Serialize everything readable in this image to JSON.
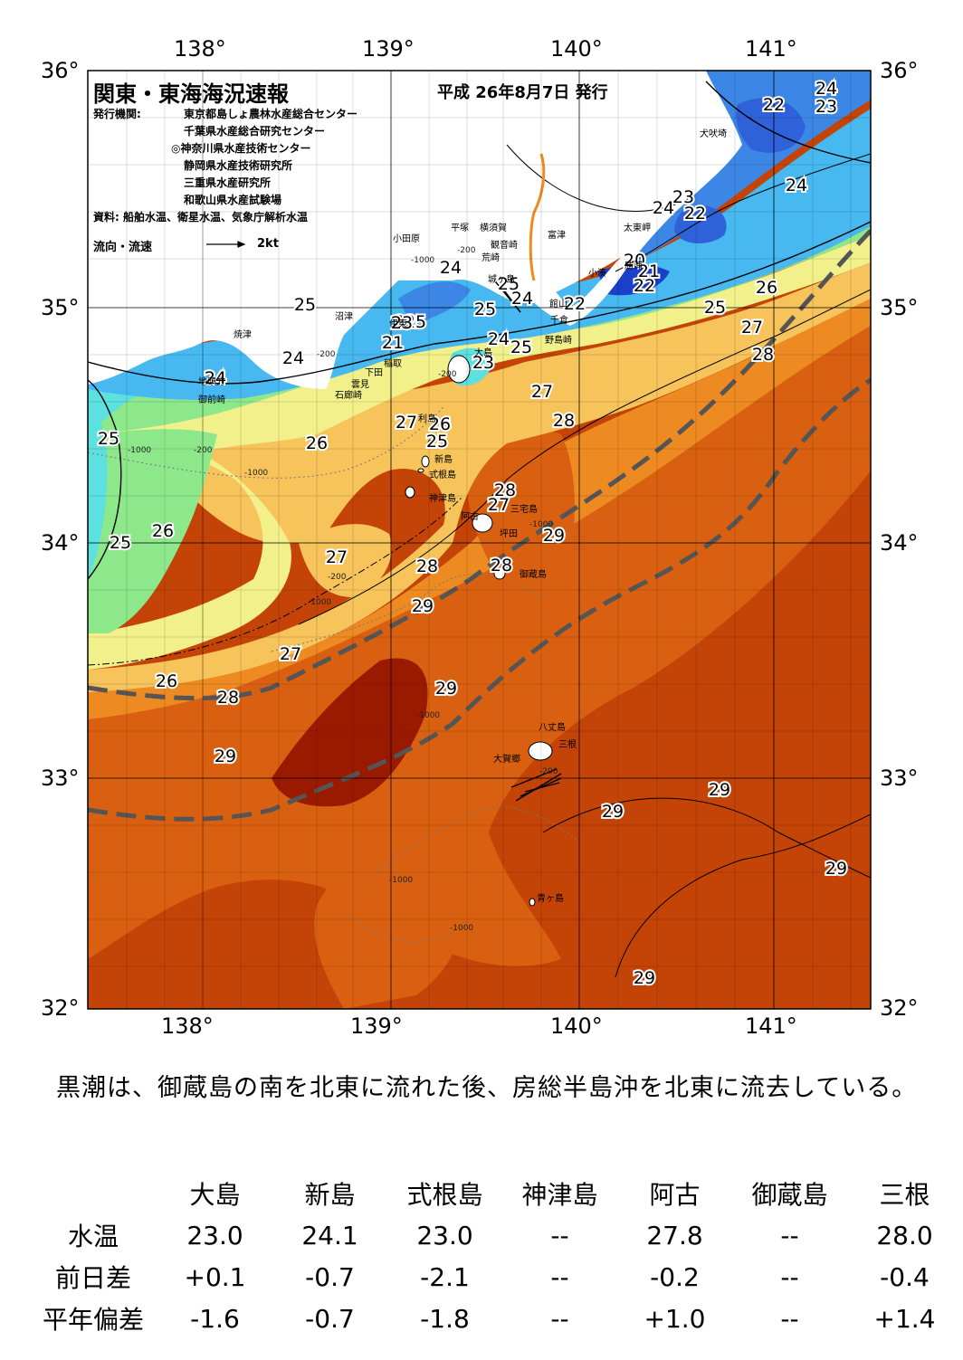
{
  "header": {
    "title": "関東・東海海況速報",
    "date": "平成 26年8月7日 発行",
    "agency_label": "発行機関:",
    "agencies": [
      "東京都島しょ農林水産総合センター",
      "千葉県水産総合研究センター",
      "◎神奈川県水産技術センター",
      "静岡県水産技術研究所",
      "三重県水産研究所",
      "和歌山県水産試験場"
    ],
    "source": "資料: 船舶水温、衛星水温、気象庁解析水温",
    "flow_legend": "流向・流速",
    "flow_unit": "2kt"
  },
  "axes": {
    "lon_labels": [
      "138°",
      "139°",
      "140°",
      "141°"
    ],
    "lat_labels": [
      "36°",
      "35°",
      "34°",
      "33°",
      "32°"
    ]
  },
  "isotherm_labels": [
    "22",
    "24",
    "23",
    "24",
    "23",
    "24",
    "22",
    "20",
    "21",
    "22",
    "25",
    "26",
    "24",
    "25",
    "24",
    "25",
    "25",
    "22",
    "22",
    "27",
    "28",
    "25",
    "24",
    "23",
    "21",
    "23",
    "24",
    "24",
    "23",
    "25",
    "27",
    "28",
    "25",
    "26",
    "27",
    "26",
    "25",
    "28",
    "27",
    "29",
    "26",
    "25",
    "28",
    "27",
    "28",
    "29",
    "27",
    "29",
    "26",
    "28",
    "29",
    "29",
    "29",
    "29",
    "29",
    "24"
  ],
  "place_names": [
    "犬吠埼",
    "平塚",
    "横須賀",
    "観音崎",
    "富津",
    "小田原",
    "荒崎",
    "太東岬",
    "沼津",
    "城ヶ島",
    "小湊",
    "館山",
    "焼津",
    "伊東",
    "千倉",
    "野島崎",
    "稲取",
    "大島",
    "下田",
    "地頭方",
    "雲見",
    "御前崎",
    "石廊崎",
    "利島",
    "新島",
    "式根島",
    "神津島",
    "三宅島",
    "阿古",
    "坪田",
    "御蔵島",
    "八丈島",
    "三根",
    "大賀郷",
    "青ヶ島",
    "勝浦"
  ],
  "depth_labels": [
    "-200",
    "-1000",
    "-200",
    "-1000",
    "-200",
    "-1000",
    "-200",
    "-1000",
    "-200",
    "-1000",
    "-1000",
    "-1000",
    "-200",
    "-1000"
  ],
  "summary": "黒潮は、御蔵島の南を北東に流れた後、房総半島沖を北東に流去している。",
  "table": {
    "columns": [
      "大島",
      "新島",
      "式根島",
      "神津島",
      "阿古",
      "御蔵島",
      "三根"
    ],
    "rows": [
      {
        "label": "水温",
        "values": [
          "23.0",
          "24.1",
          "23.0",
          "--",
          "27.8",
          "--",
          "28.0"
        ]
      },
      {
        "label": "前日差",
        "values": [
          "+0.1",
          "-0.7",
          "-2.1",
          "--",
          "-0.2",
          "--",
          "-0.4"
        ]
      },
      {
        "label": "平年偏差",
        "values": [
          "-1.6",
          "-0.7",
          "-1.8",
          "--",
          "+1.0",
          "--",
          "+1.4"
        ]
      }
    ]
  },
  "colors": {
    "t20": "#1a3fc8",
    "t22": "#2f62d8",
    "t23": "#3c87e6",
    "t24": "#47b8f0",
    "t25": "#5ce0e0",
    "t26": "#8de88c",
    "t27": "#f2f08a",
    "t275": "#f7c45c",
    "t28": "#ee8a22",
    "t285": "#d96010",
    "t29": "#c44408",
    "t295": "#9a1a00",
    "land": "#ffffff",
    "kuroshio": "#555555"
  }
}
